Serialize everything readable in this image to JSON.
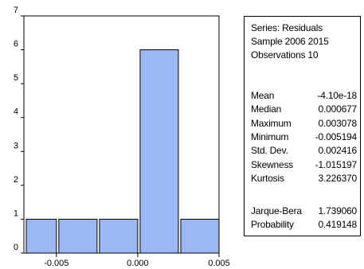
{
  "chart_data": {
    "type": "bar",
    "bins": [
      {
        "from": -0.007,
        "to": -0.005,
        "count": 1
      },
      {
        "from": -0.005,
        "to": -0.0025,
        "count": 1
      },
      {
        "from": -0.0025,
        "to": 0.0,
        "count": 1
      },
      {
        "from": 0.0,
        "to": 0.0025,
        "count": 6
      },
      {
        "from": 0.0025,
        "to": 0.005,
        "count": 1
      }
    ],
    "x_ticks": [
      -0.005,
      0.0,
      0.005
    ],
    "x_tick_labels": [
      "-0.005",
      "0.000",
      "0.005"
    ],
    "y_ticks": [
      0,
      1,
      2,
      3,
      4,
      5,
      6,
      7
    ],
    "y_tick_labels": [
      "0",
      "1",
      "2",
      "3",
      "4",
      "5",
      "6",
      "7"
    ],
    "xlim": [
      -0.007,
      0.005
    ],
    "ylim": [
      0,
      7
    ],
    "bar_color": "#9cb8f4",
    "grid": false
  },
  "stats": {
    "series_line": "Series: Residuals",
    "sample_line": "Sample 2006 2015",
    "obs_line": "Observations 10",
    "rows": [
      {
        "label": "Mean",
        "value": "-4.10e-18"
      },
      {
        "label": "Median",
        "value": "0.000677"
      },
      {
        "label": "Maximum",
        "value": "0.003078"
      },
      {
        "label": "Minimum",
        "value": "-0.005194"
      },
      {
        "label": "Std. Dev.",
        "value": "0.002416"
      },
      {
        "label": "Skewness",
        "value": "-1.015197"
      },
      {
        "label": "Kurtosis",
        "value": "3.226370"
      }
    ],
    "tests": [
      {
        "label": "Jarque-Bera",
        "value": "1.739060"
      },
      {
        "label": "Probability",
        "value": "0.419148"
      }
    ]
  }
}
